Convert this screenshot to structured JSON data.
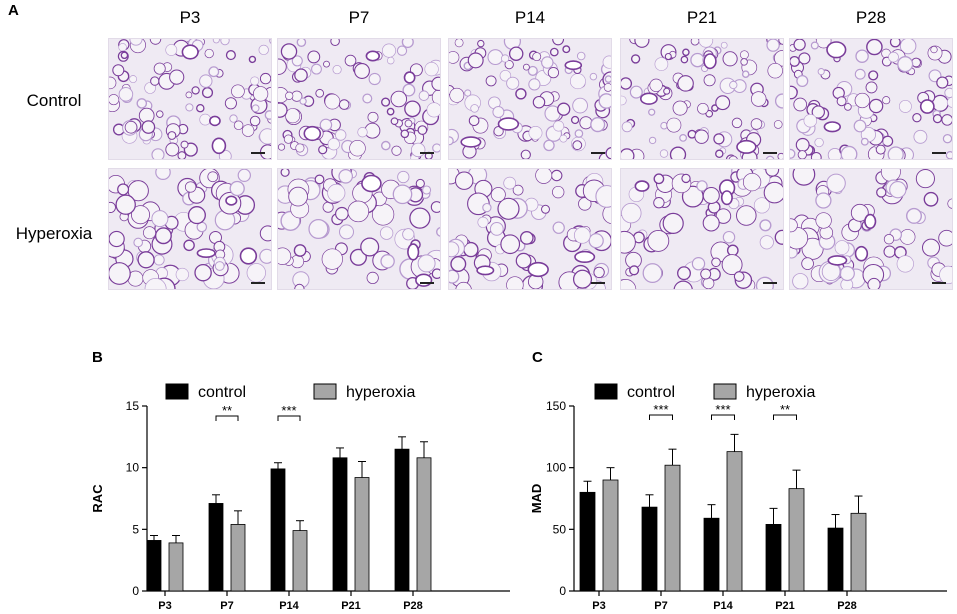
{
  "panel_a": {
    "letter": "A",
    "columns": [
      "P3",
      "P7",
      "P14",
      "P21",
      "P28"
    ],
    "rows": [
      "Control",
      "Hyperoxia"
    ]
  },
  "colors": {
    "control": "#000000",
    "hyperoxia": "#a6a6a6",
    "tissue": "#7a3d9a",
    "tissue_light": "#b79bd0",
    "background_tissue": "#efeaf3"
  },
  "chart_data": [
    {
      "letter": "B",
      "type": "bar",
      "title": "",
      "xlabel": "",
      "ylabel": "RAC",
      "ylim": [
        0,
        15
      ],
      "yticks": [
        0,
        5,
        10,
        15
      ],
      "legend_position": "top",
      "categories": [
        "P3",
        "P7",
        "P14",
        "P21",
        "P28"
      ],
      "series": [
        {
          "name": "control",
          "values": [
            4.1,
            7.1,
            9.9,
            10.8,
            11.5
          ],
          "errors": [
            0.4,
            0.7,
            0.5,
            0.8,
            1.0
          ]
        },
        {
          "name": "hyperoxia",
          "values": [
            3.9,
            5.4,
            4.9,
            9.2,
            10.8
          ],
          "errors": [
            0.6,
            1.1,
            0.8,
            1.3,
            1.3
          ]
        }
      ],
      "significance": [
        {
          "category": "P7",
          "label": "**"
        },
        {
          "category": "P14",
          "label": "***"
        }
      ]
    },
    {
      "letter": "C",
      "type": "bar",
      "title": "",
      "xlabel": "",
      "ylabel": "MAD",
      "ylim": [
        0,
        150
      ],
      "yticks": [
        0,
        50,
        100,
        150
      ],
      "legend_position": "top",
      "categories": [
        "P3",
        "P7",
        "P14",
        "P21",
        "P28"
      ],
      "series": [
        {
          "name": "control",
          "values": [
            80,
            68,
            59,
            54,
            51
          ],
          "errors": [
            9,
            10,
            11,
            13,
            11
          ]
        },
        {
          "name": "hyperoxia",
          "values": [
            90,
            102,
            113,
            83,
            63
          ],
          "errors": [
            10,
            13,
            14,
            15,
            14
          ]
        }
      ],
      "significance": [
        {
          "category": "P7",
          "label": "***"
        },
        {
          "category": "P14",
          "label": "***"
        },
        {
          "category": "P21",
          "label": "**"
        }
      ]
    }
  ]
}
